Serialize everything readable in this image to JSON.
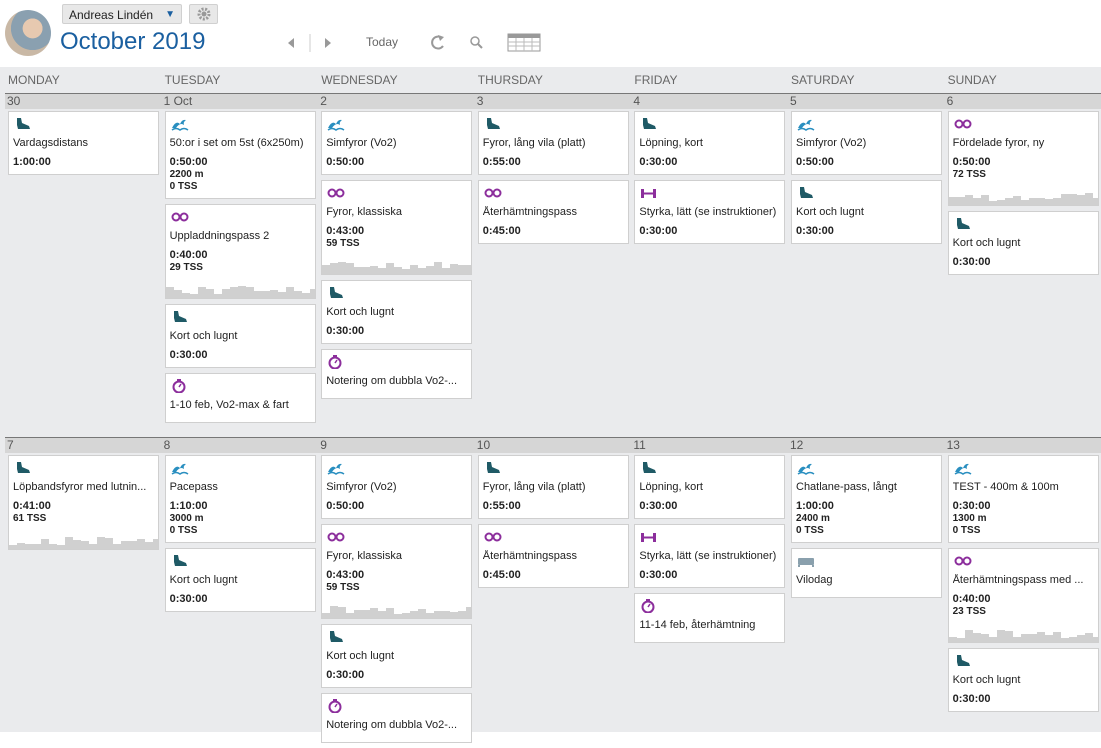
{
  "header": {
    "user": "Andreas Lindén",
    "month": "October",
    "year": "2019",
    "today": "Today"
  },
  "day_names": [
    "MONDAY",
    "TUESDAY",
    "WEDNESDAY",
    "THURSDAY",
    "FRIDAY",
    "SATURDAY",
    "SUNDAY"
  ],
  "weeks": [
    {
      "days": [
        {
          "date": "30",
          "workouts": [
            {
              "icon": "run",
              "title": "Vardagsdistans",
              "duration": "1:00:00"
            }
          ]
        },
        {
          "date": "1 Oct",
          "workouts": [
            {
              "icon": "swim",
              "title": "50:or i set om 5st (6x250m)",
              "duration": "0:50:00",
              "distance": "2200 m",
              "tss": "0 TSS"
            },
            {
              "icon": "bike",
              "title": "Uppladdningspass 2",
              "duration": "0:40:00",
              "tss": "29 TSS",
              "graph": true
            },
            {
              "icon": "run",
              "title": "Kort och lugnt",
              "duration": "0:30:00"
            },
            {
              "icon": "note",
              "title": "1-10 feb, Vo2-max & fart"
            }
          ]
        },
        {
          "date": "2",
          "workouts": [
            {
              "icon": "swim",
              "title": "Simfyror (Vo2)",
              "duration": "0:50:00"
            },
            {
              "icon": "bike",
              "title": "Fyror, klassiska",
              "duration": "0:43:00",
              "tss": "59 TSS",
              "graph": true
            },
            {
              "icon": "run",
              "title": "Kort och lugnt",
              "duration": "0:30:00"
            },
            {
              "icon": "note",
              "title": "Notering om dubbla Vo2-..."
            }
          ]
        },
        {
          "date": "3",
          "workouts": [
            {
              "icon": "run",
              "title": "Fyror, lång vila (platt)",
              "duration": "0:55:00"
            },
            {
              "icon": "bike",
              "title": "Återhämtningspass",
              "duration": "0:45:00"
            }
          ]
        },
        {
          "date": "4",
          "workouts": [
            {
              "icon": "run",
              "title": "Löpning, kort",
              "duration": "0:30:00"
            },
            {
              "icon": "strength",
              "title": "Styrka, lätt (se instruktioner)",
              "duration": "0:30:00"
            }
          ]
        },
        {
          "date": "5",
          "workouts": [
            {
              "icon": "swim",
              "title": "Simfyror (Vo2)",
              "duration": "0:50:00"
            },
            {
              "icon": "run",
              "title": "Kort och lugnt",
              "duration": "0:30:00"
            }
          ]
        },
        {
          "date": "6",
          "workouts": [
            {
              "icon": "bike",
              "title": "Fördelade fyror, ny",
              "duration": "0:50:00",
              "tss": "72 TSS",
              "graph": true
            },
            {
              "icon": "run",
              "title": "Kort och lugnt",
              "duration": "0:30:00"
            }
          ]
        }
      ]
    },
    {
      "days": [
        {
          "date": "7",
          "workouts": [
            {
              "icon": "run",
              "title": "Löpbandsfyror med lutnin...",
              "duration": "0:41:00",
              "tss": "61 TSS",
              "graph": true
            }
          ]
        },
        {
          "date": "8",
          "workouts": [
            {
              "icon": "swim",
              "title": "Pacepass",
              "duration": "1:10:00",
              "distance": "3000 m",
              "tss": "0 TSS"
            },
            {
              "icon": "run",
              "title": "Kort och lugnt",
              "duration": "0:30:00"
            }
          ]
        },
        {
          "date": "9",
          "workouts": [
            {
              "icon": "swim",
              "title": "Simfyror (Vo2)",
              "duration": "0:50:00"
            },
            {
              "icon": "bike",
              "title": "Fyror, klassiska",
              "duration": "0:43:00",
              "tss": "59 TSS",
              "graph": true
            },
            {
              "icon": "run",
              "title": "Kort och lugnt",
              "duration": "0:30:00"
            },
            {
              "icon": "note",
              "title": "Notering om dubbla Vo2-..."
            }
          ]
        },
        {
          "date": "10",
          "workouts": [
            {
              "icon": "run",
              "title": "Fyror, lång vila (platt)",
              "duration": "0:55:00"
            },
            {
              "icon": "bike",
              "title": "Återhämtningspass",
              "duration": "0:45:00"
            }
          ]
        },
        {
          "date": "11",
          "workouts": [
            {
              "icon": "run",
              "title": "Löpning, kort",
              "duration": "0:30:00"
            },
            {
              "icon": "strength",
              "title": "Styrka, lätt (se instruktioner)",
              "duration": "0:30:00"
            },
            {
              "icon": "note",
              "title": "11-14 feb, återhämtning"
            }
          ]
        },
        {
          "date": "12",
          "workouts": [
            {
              "icon": "swim",
              "title": "Chatlane-pass, långt",
              "duration": "1:00:00",
              "distance": "2400 m",
              "tss": "0 TSS"
            },
            {
              "icon": "rest",
              "title": "Vilodag"
            }
          ]
        },
        {
          "date": "13",
          "workouts": [
            {
              "icon": "swim",
              "title": "TEST - 400m & 100m",
              "duration": "0:30:00",
              "distance": "1300 m",
              "tss": "0 TSS"
            },
            {
              "icon": "bike",
              "title": "Återhämtningspass med ...",
              "duration": "0:40:00",
              "tss": "23 TSS",
              "graph": true
            },
            {
              "icon": "run",
              "title": "Kort och lugnt",
              "duration": "0:30:00"
            }
          ]
        }
      ]
    }
  ]
}
